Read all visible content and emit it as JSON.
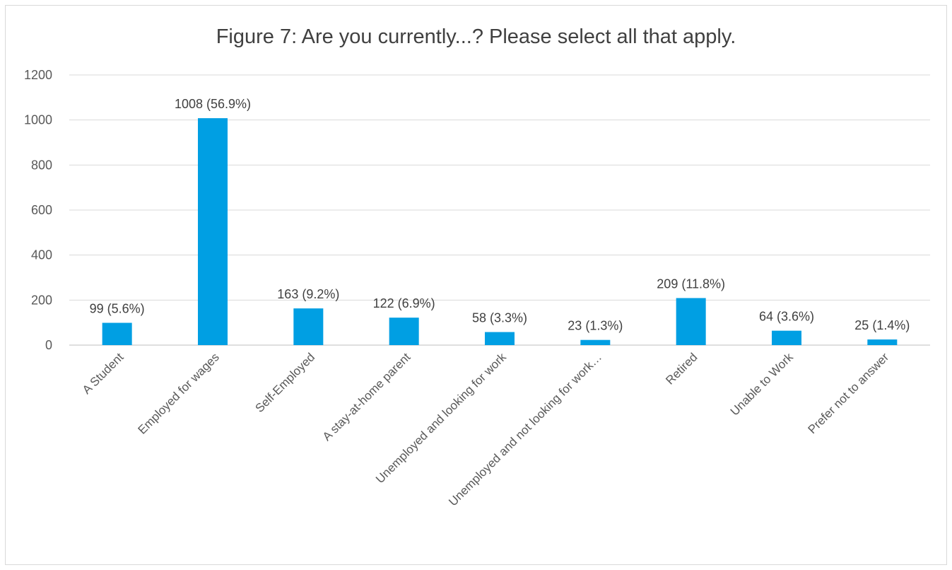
{
  "chart_data": {
    "type": "bar",
    "title": "Figure 7: Are you currently...?  Please select all that apply.",
    "xlabel": "",
    "ylabel": "",
    "ylim": [
      0,
      1200
    ],
    "yticks": [
      0,
      200,
      400,
      600,
      800,
      1000,
      1200
    ],
    "grid": true,
    "legend": "none",
    "bar_color": "#009fe3",
    "categories": [
      "A Student",
      "Employed for wages",
      "Self-Employed",
      "A stay-at-home parent",
      "Unemployed and looking for work",
      "Unemployed and not looking for work…",
      "Retired",
      "Unable to Work",
      "Prefer not to answer"
    ],
    "values": [
      99,
      1008,
      163,
      122,
      58,
      23,
      209,
      64,
      25
    ],
    "data_labels": [
      "99 (5.6%)",
      "1008 (56.9%)",
      "163 (9.2%)",
      "122 (6.9%)",
      "58 (3.3%)",
      "23 (1.3%)",
      "209 (11.8%)",
      "64 (3.6%)",
      "25 (1.4%)"
    ]
  }
}
